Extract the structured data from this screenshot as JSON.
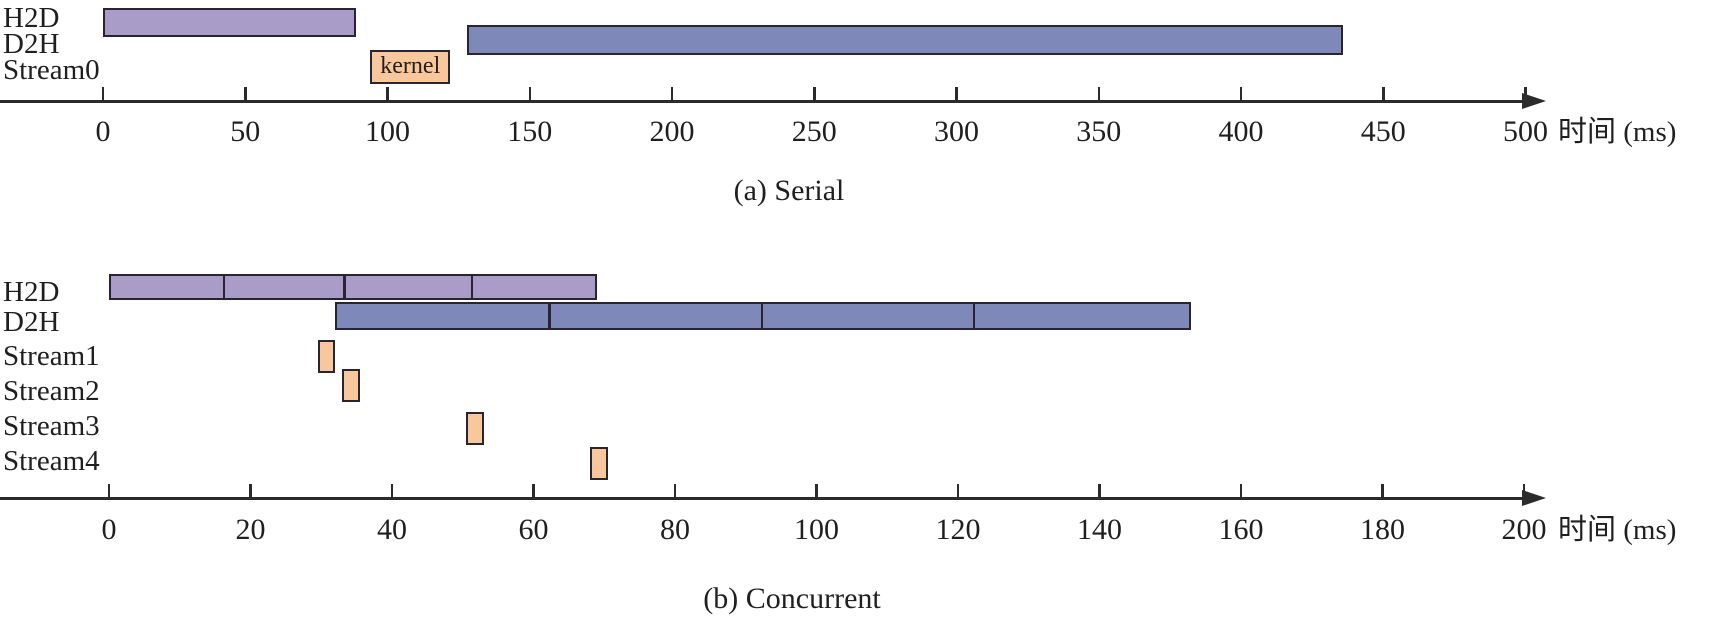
{
  "figure_title": "CUDA stream execution timelines",
  "colors": {
    "h2d": "#a99cc9",
    "d2h": "#7e88b9",
    "kernel": "#f8c89c",
    "bar_border": "#2a2430",
    "axis": "#2b2b2b",
    "text": "#1f1f1f"
  },
  "chart_data": [
    {
      "type": "gantt",
      "title": "(a) Serial",
      "xlabel": "时间 (ms)",
      "axis": {
        "min": 0,
        "max": 500,
        "tick_step": 50,
        "ticks": [
          0,
          50,
          100,
          150,
          200,
          250,
          300,
          350,
          400,
          450,
          500
        ],
        "unit": "ms",
        "grid": false
      },
      "rows": [
        {
          "label": "H2D",
          "bars": [
            {
              "start": 0,
              "end": 89,
              "color": "h2d"
            }
          ]
        },
        {
          "label": "D2H",
          "bars": [
            {
              "start": 128,
              "end": 436,
              "color": "d2h"
            }
          ]
        },
        {
          "label": "Stream0",
          "bars": [
            {
              "start": 94,
              "end": 122,
              "color": "kernel",
              "text": "kernel"
            }
          ]
        }
      ]
    },
    {
      "type": "gantt",
      "title": "(b) Concurrent",
      "xlabel": "时间 (ms)",
      "axis": {
        "min": 0,
        "max": 200,
        "tick_step": 20,
        "ticks": [
          0,
          20,
          40,
          60,
          80,
          100,
          120,
          140,
          160,
          180,
          200
        ],
        "unit": "ms",
        "grid": false
      },
      "rows": [
        {
          "label": "H2D",
          "bars": [
            {
              "start": 0,
              "end": 69,
              "segments": [
                16,
                33,
                51
              ],
              "color": "h2d"
            }
          ]
        },
        {
          "label": "D2H",
          "bars": [
            {
              "start": 32,
              "end": 153,
              "segments": [
                62,
                92,
                122
              ],
              "color": "d2h"
            }
          ]
        },
        {
          "label": "Stream1",
          "bars": [
            {
              "start": 29.5,
              "end": 32,
              "color": "kernel"
            }
          ]
        },
        {
          "label": "Stream2",
          "bars": [
            {
              "start": 33,
              "end": 35.5,
              "color": "kernel"
            }
          ]
        },
        {
          "label": "Stream3",
          "bars": [
            {
              "start": 50.5,
              "end": 53,
              "color": "kernel"
            }
          ]
        },
        {
          "label": "Stream4",
          "bars": [
            {
              "start": 68,
              "end": 70.5,
              "color": "kernel"
            }
          ]
        }
      ]
    }
  ]
}
